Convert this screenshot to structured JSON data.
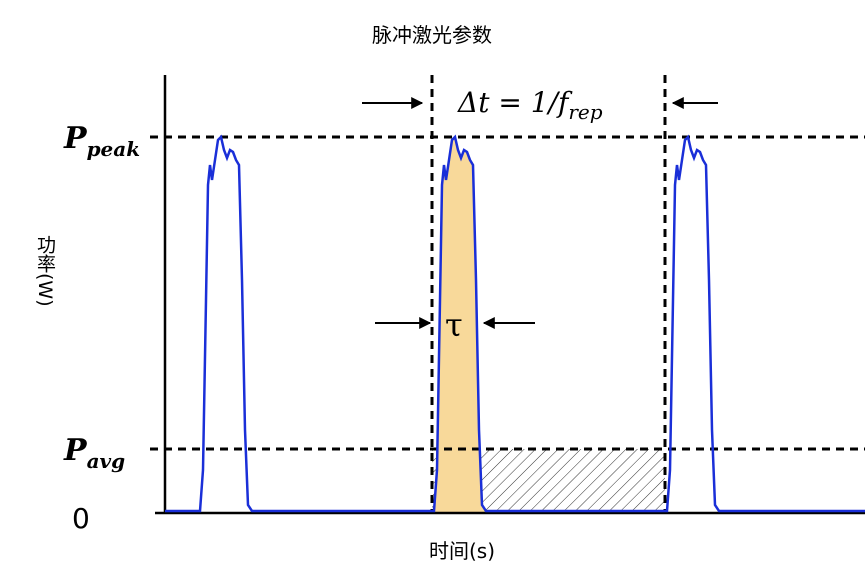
{
  "title": "脉冲激光参数",
  "y_label": "功率(W)",
  "x_label": "时间(s)",
  "levels": {
    "peak": {
      "main": "P",
      "sub": "peak"
    },
    "avg": {
      "main": "P",
      "sub": "avg"
    },
    "zero": "0"
  },
  "period": {
    "main": "Δt = 1/f",
    "sub": "rep"
  },
  "width": "τ"
}
